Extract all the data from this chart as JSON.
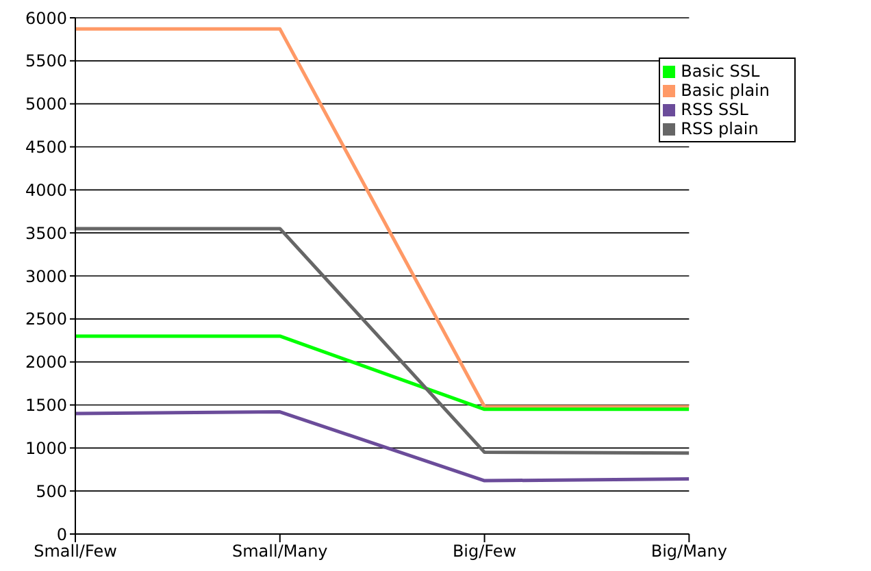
{
  "chart_data": {
    "type": "line",
    "categories": [
      "Small/Few",
      "Small/Many",
      "Big/Few",
      "Big/Many"
    ],
    "series": [
      {
        "name": "Basic plain",
        "color": "#ff9966",
        "values": [
          5870,
          5870,
          1480,
          1480
        ]
      },
      {
        "name": "Basic SSL",
        "color": "#00ff00",
        "values": [
          2300,
          2300,
          1450,
          1450
        ]
      },
      {
        "name": "RSS plain",
        "color": "#666666",
        "values": [
          3550,
          3550,
          950,
          940
        ]
      },
      {
        "name": "RSS SSL",
        "color": "#6b4c9a",
        "values": [
          1400,
          1420,
          620,
          640
        ]
      }
    ],
    "ylim": [
      0,
      6000
    ],
    "yticks": [
      0,
      500,
      1000,
      1500,
      2000,
      2500,
      3000,
      3500,
      4000,
      4500,
      5000,
      5500,
      6000
    ],
    "grid": "y",
    "legend": "top right",
    "marker": "none",
    "line_style": "solid"
  }
}
